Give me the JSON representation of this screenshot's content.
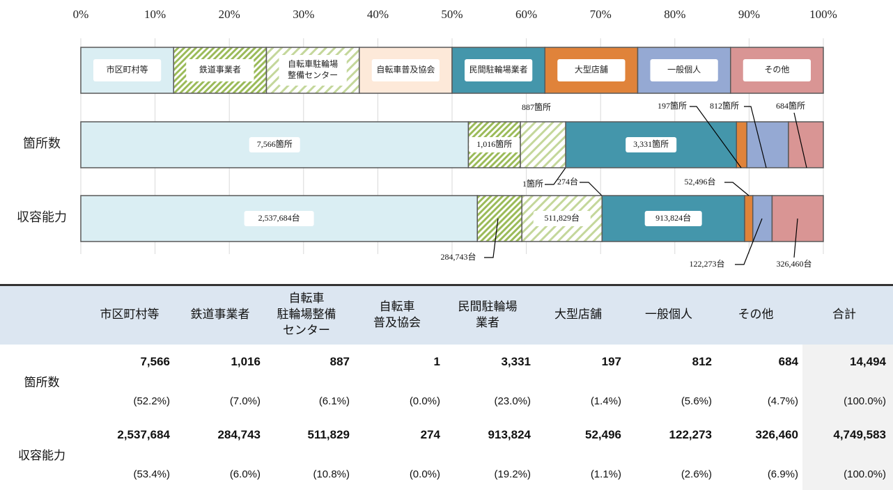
{
  "chart_data": {
    "type": "bar",
    "orientation": "horizontal",
    "stacked": true,
    "categories": [
      "箇所数",
      "収容能力"
    ],
    "xlim": [
      0,
      100
    ],
    "xticks": [
      {
        "value": 0,
        "label": "0%"
      },
      {
        "value": 10,
        "label": "10%"
      },
      {
        "value": 20,
        "label": "20%"
      },
      {
        "value": 30,
        "label": "30%"
      },
      {
        "value": 40,
        "label": "40%"
      },
      {
        "value": 50,
        "label": "50%"
      },
      {
        "value": 60,
        "label": "60%"
      },
      {
        "value": 70,
        "label": "70%"
      },
      {
        "value": 80,
        "label": "80%"
      },
      {
        "value": 90,
        "label": "90%"
      },
      {
        "value": 100,
        "label": "100%"
      }
    ],
    "grid": true,
    "series": [
      {
        "name": "市区町村等",
        "color": "#daeef3",
        "values": [
          52.2,
          53.4
        ],
        "labels": [
          "7,566箇所",
          "2,537,684台"
        ]
      },
      {
        "name": "鉄道事業者",
        "color": "#9bbb59",
        "hatch": true,
        "values": [
          7.0,
          6.0
        ],
        "labels": [
          "1,016箇所",
          "284,743台"
        ]
      },
      {
        "name": "自転車駐輪場\n整備センター",
        "color": "#c4d79b",
        "hatch": true,
        "values": [
          6.1,
          10.8
        ],
        "labels": [
          "887箇所",
          "511,829台"
        ]
      },
      {
        "name": "自転車普及協会",
        "color": "#fde9d9",
        "values": [
          0.0,
          0.0
        ],
        "labels": [
          "1箇所",
          "274台"
        ]
      },
      {
        "name": "民間駐輪場業者",
        "color": "#4496ab",
        "values": [
          23.0,
          19.2
        ],
        "labels": [
          "3,331箇所",
          "913,824台"
        ]
      },
      {
        "name": "大型店舗",
        "color": "#e0833a",
        "values": [
          1.4,
          1.1
        ],
        "labels": [
          "197箇所",
          "52,496台"
        ]
      },
      {
        "name": "一般個人",
        "color": "#95a9d3",
        "values": [
          5.6,
          2.6
        ],
        "labels": [
          "812箇所",
          "122,273台"
        ]
      },
      {
        "name": "その他",
        "color": "#d99594",
        "values": [
          4.7,
          6.9
        ],
        "labels": [
          "684箇所",
          "326,460台"
        ]
      }
    ]
  },
  "table": {
    "headers": [
      "市区町村等",
      "鉄道事業者",
      "自転車\n駐輪場整備\nセンター",
      "自転車\n普及協会",
      "民間駐輪場\n業者",
      "大型店舗",
      "一般個人",
      "その他",
      "合計"
    ],
    "rows": [
      {
        "label": "箇所数",
        "values": [
          "7,566",
          "1,016",
          "887",
          "1",
          "3,331",
          "197",
          "812",
          "684",
          "14,494"
        ],
        "shares": [
          "(52.2%)",
          "(7.0%)",
          "(6.1%)",
          "(0.0%)",
          "(23.0%)",
          "(1.4%)",
          "(5.6%)",
          "(4.7%)",
          "(100.0%)"
        ]
      },
      {
        "label": "収容能力",
        "values": [
          "2,537,684",
          "284,743",
          "511,829",
          "274",
          "913,824",
          "52,496",
          "122,273",
          "326,460",
          "4,749,583"
        ],
        "shares": [
          "(53.4%)",
          "(6.0%)",
          "(10.8%)",
          "(0.0%)",
          "(19.2%)",
          "(1.1%)",
          "(2.6%)",
          "(6.9%)",
          "(100.0%)"
        ]
      }
    ]
  }
}
